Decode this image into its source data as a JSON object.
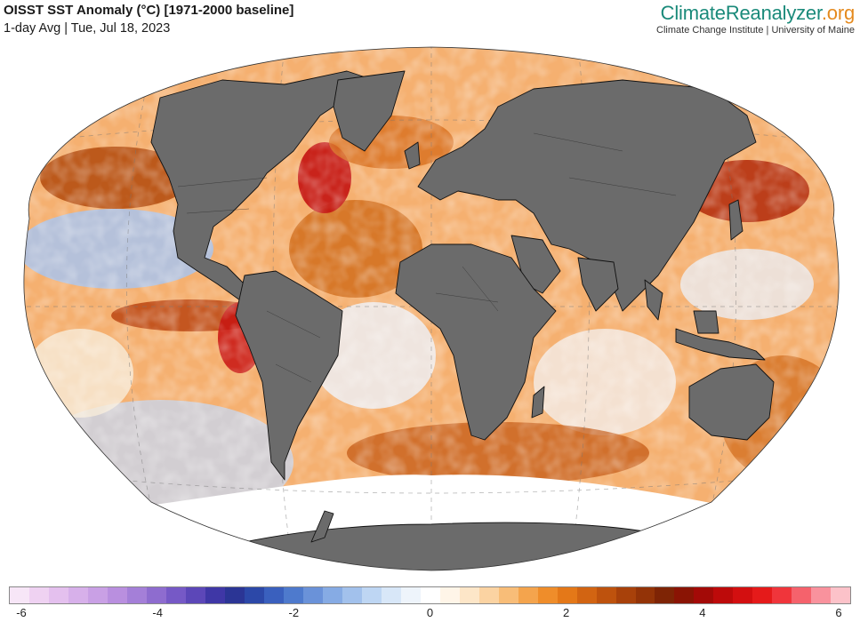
{
  "header": {
    "title": "OISST SST Anomaly (°C) [1971-2000 baseline]",
    "subtitle": "1-day Avg | Tue, Jul 18, 2023"
  },
  "brand": {
    "name_part1": "ClimateReanalyzer",
    "name_part2": ".org",
    "tagline": "Climate Change Institute | University of Maine"
  },
  "map": {
    "projection": "Winkel tripel (world)",
    "land_color": "#6b6b6b",
    "coast_color": "#111111",
    "ice_color": "#ffffff"
  },
  "colorbar": {
    "min": -6,
    "max": 6,
    "ticks": [
      "-6",
      "-4",
      "-2",
      "0",
      "2",
      "4",
      "6"
    ],
    "colors": [
      "#f7e6f7",
      "#efd2f2",
      "#e4c0ee",
      "#d7b0ea",
      "#c9a0e5",
      "#b98fdf",
      "#a47fd8",
      "#8e6ccf",
      "#7659c6",
      "#5c47b8",
      "#3f37a6",
      "#2b3595",
      "#2c48a8",
      "#3a60be",
      "#4e7acd",
      "#6a92d9",
      "#86abe4",
      "#a2c1ec",
      "#bed6f3",
      "#d8e7f8",
      "#eef4fb",
      "#ffffff",
      "#fff5e8",
      "#fde6c8",
      "#fbd3a2",
      "#f8bd78",
      "#f4a44d",
      "#ef8d2a",
      "#e47818",
      "#d26412",
      "#be520d",
      "#a8410a",
      "#933307",
      "#7e2405",
      "#8a1404",
      "#a30a07",
      "#bd0a0a",
      "#d30f10",
      "#e51a1a",
      "#f0353b",
      "#f5626c",
      "#f9929d",
      "#fcc2c9"
    ]
  }
}
